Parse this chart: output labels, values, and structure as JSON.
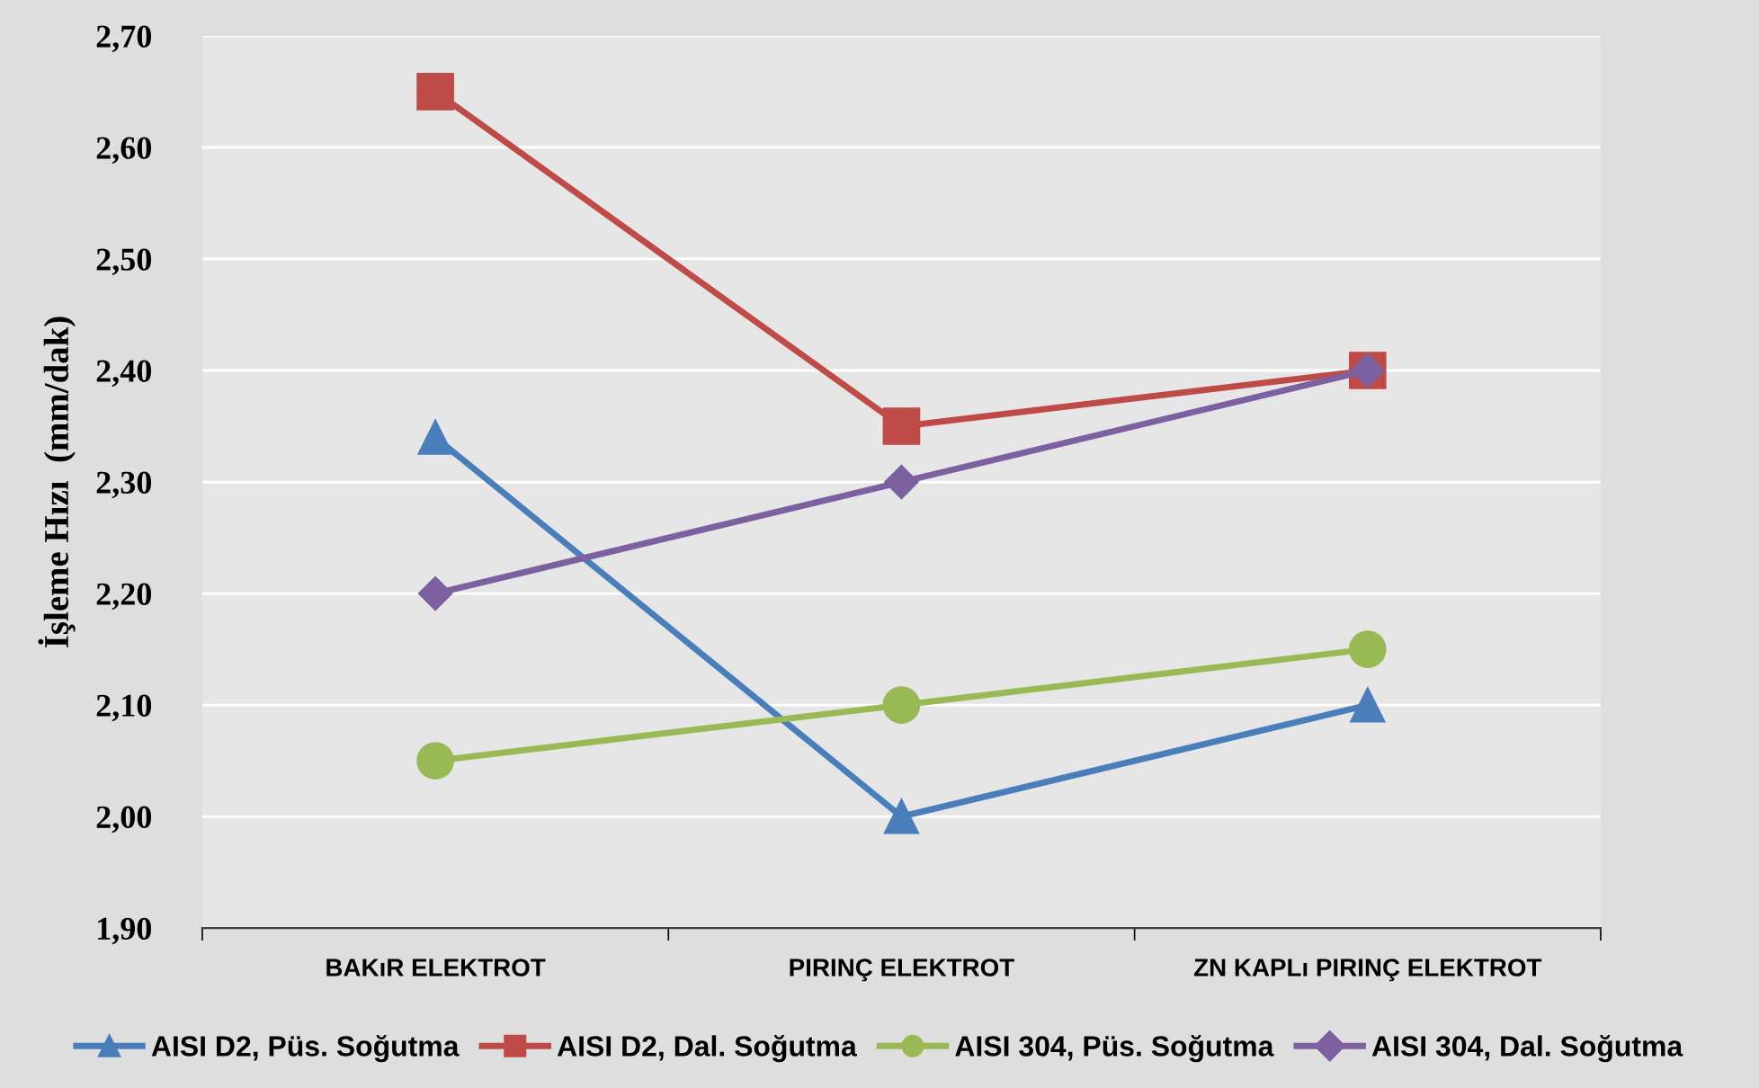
{
  "chart_data": {
    "type": "line",
    "ylabel": "İşleme Hızı  (mm/dak)",
    "categories": [
      "BAKıR ELEKTROT",
      "PIRINÇ ELEKTROT",
      "ZN KAPLı PIRINÇ ELEKTROT"
    ],
    "series": [
      {
        "name": "AISI D2, Püs. Soğutma",
        "color": "#4a7ebb",
        "marker": "triangle",
        "values": [
          2.34,
          2.0,
          2.1
        ]
      },
      {
        "name": "AISI D2, Dal. Soğutma",
        "color": "#be4b48",
        "marker": "square",
        "values": [
          2.65,
          2.35,
          2.4
        ]
      },
      {
        "name": "AISI 304, Püs. Soğutma",
        "color": "#98b954",
        "marker": "circle",
        "values": [
          2.05,
          2.1,
          2.15
        ]
      },
      {
        "name": "AISI 304, Dal. Soğutma",
        "color": "#7d60a0",
        "marker": "diamond",
        "values": [
          2.2,
          2.3,
          2.4
        ]
      }
    ],
    "ylim": [
      1.9,
      2.7
    ],
    "yticks": [
      {
        "value": 1.9,
        "label": "1,90"
      },
      {
        "value": 2.0,
        "label": "2,00"
      },
      {
        "value": 2.1,
        "label": "2,10"
      },
      {
        "value": 2.2,
        "label": "2,20"
      },
      {
        "value": 2.3,
        "label": "2,30"
      },
      {
        "value": 2.4,
        "label": "2,40"
      },
      {
        "value": 2.5,
        "label": "2,50"
      },
      {
        "value": 2.6,
        "label": "2,60"
      },
      {
        "value": 2.7,
        "label": "2,70"
      }
    ],
    "grid": "y",
    "legend": "bottom"
  }
}
